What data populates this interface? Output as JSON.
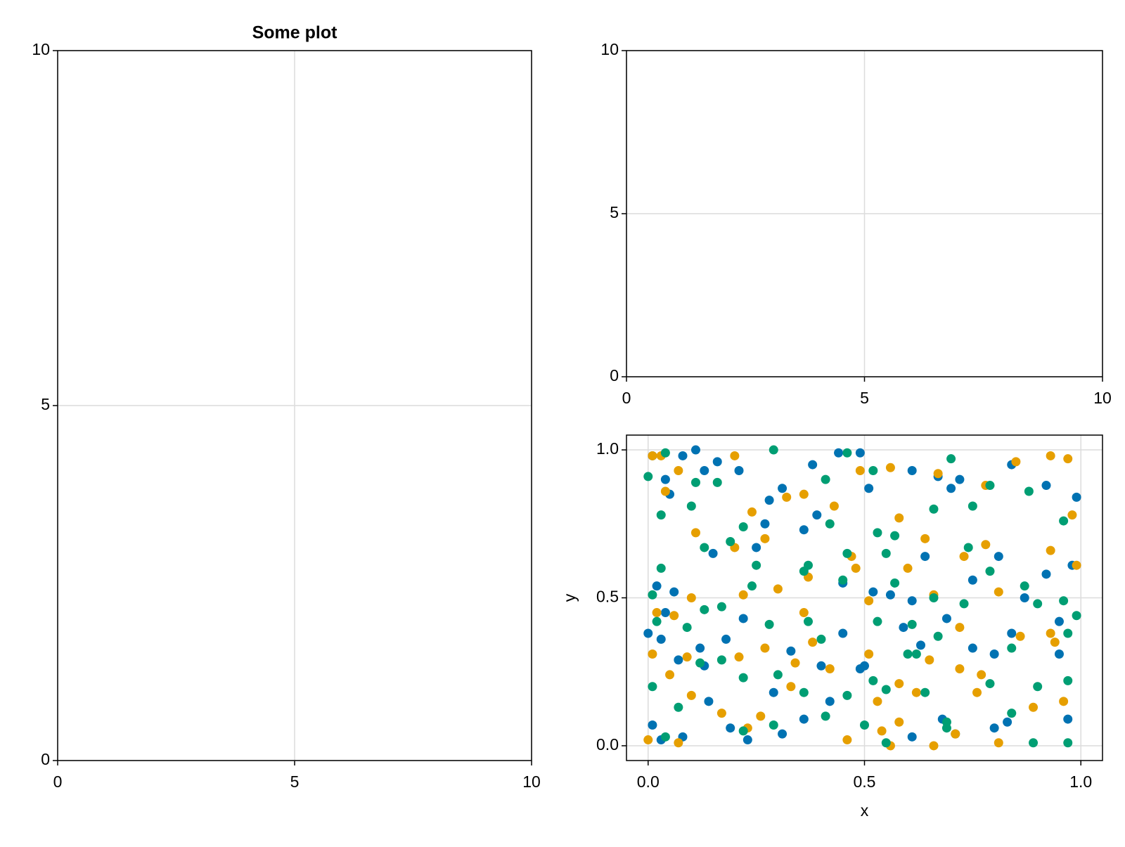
{
  "chart_data": [
    {
      "type": "scatter",
      "title": "Some plot",
      "xlim": [
        0,
        10
      ],
      "ylim": [
        0,
        10
      ],
      "xticks": [
        0,
        5,
        10
      ],
      "yticks": [
        0,
        5,
        10
      ],
      "grid": true
    },
    {
      "type": "scatter",
      "xlim": [
        0,
        10
      ],
      "ylim": [
        0,
        10
      ],
      "xticks": [
        0,
        5,
        10
      ],
      "yticks": [
        0,
        5,
        10
      ],
      "grid": true
    },
    {
      "type": "scatter",
      "x_label": "x",
      "y_label": "y",
      "xlim": [
        -0.05,
        1.05
      ],
      "ylim": [
        -0.05,
        1.05
      ],
      "xticks": [
        {
          "value": 0,
          "label": "0.0"
        },
        0.5,
        {
          "value": 1,
          "label": "1.0"
        }
      ],
      "yticks": [
        {
          "value": 0,
          "label": "0.0"
        },
        0.5,
        {
          "value": 1,
          "label": "1.0"
        }
      ],
      "grid": true,
      "series": [
        {
          "color": "#0072b2",
          "x": [
            0.01,
            0.04,
            0.05,
            0.08,
            0.11,
            0.13,
            0.16,
            0.21,
            0.28,
            0.31,
            0.38,
            0.44,
            0.49,
            0.51,
            0.61,
            0.67,
            0.72,
            0.84,
            0.92,
            0.99,
            0.02,
            0.04,
            0.06,
            0.12,
            0.15,
            0.18,
            0.25,
            0.27,
            0.36,
            0.39,
            0.45,
            0.52,
            0.56,
            0.61,
            0.64,
            0.7,
            0.75,
            0.81,
            0.87,
            0.92,
            0.95,
            0.98,
            0.0,
            0.03,
            0.07,
            0.13,
            0.22,
            0.29,
            0.33,
            0.4,
            0.45,
            0.49,
            0.59,
            0.63,
            0.69,
            0.75,
            0.8,
            0.84,
            0.95,
            0.01,
            0.03,
            0.08,
            0.14,
            0.19,
            0.23,
            0.31,
            0.36,
            0.42,
            0.5,
            0.61,
            0.68,
            0.71,
            0.8,
            0.83,
            0.97
          ],
          "values": [
            0.98,
            0.9,
            0.85,
            0.98,
            1.0,
            0.93,
            0.96,
            0.93,
            0.83,
            0.87,
            0.95,
            0.99,
            0.99,
            0.87,
            0.93,
            0.91,
            0.9,
            0.95,
            0.88,
            0.84,
            0.54,
            0.45,
            0.52,
            0.33,
            0.65,
            0.36,
            0.67,
            0.75,
            0.73,
            0.78,
            0.55,
            0.52,
            0.51,
            0.49,
            0.64,
            0.87,
            0.56,
            0.64,
            0.5,
            0.58,
            0.42,
            0.61,
            0.38,
            0.36,
            0.29,
            0.27,
            0.43,
            0.18,
            0.32,
            0.27,
            0.38,
            0.26,
            0.4,
            0.34,
            0.43,
            0.33,
            0.31,
            0.38,
            0.31,
            0.07,
            0.02,
            0.03,
            0.15,
            0.06,
            0.02,
            0.04,
            0.09,
            0.15,
            0.27,
            0.03,
            0.09,
            0.04,
            0.06,
            0.08,
            0.09
          ]
        },
        {
          "color": "#e69f00",
          "x": [
            0.01,
            0.03,
            0.04,
            0.07,
            0.2,
            0.32,
            0.49,
            0.56,
            0.67,
            0.85,
            0.93,
            0.97,
            0.98,
            0.24,
            0.27,
            0.36,
            0.43,
            0.58,
            0.64,
            0.78,
            0.11,
            0.2,
            0.37,
            0.48,
            0.6,
            0.73,
            0.78,
            0.93,
            0.99,
            0.02,
            0.06,
            0.1,
            0.22,
            0.3,
            0.36,
            0.47,
            0.51,
            0.66,
            0.72,
            0.81,
            0.93,
            0.01,
            0.05,
            0.09,
            0.21,
            0.27,
            0.34,
            0.38,
            0.51,
            0.58,
            0.65,
            0.72,
            0.77,
            0.86,
            0.94,
            0.1,
            0.17,
            0.23,
            0.33,
            0.42,
            0.46,
            0.53,
            0.56,
            0.62,
            0.66,
            0.71,
            0.76,
            0.81,
            0.89,
            0.96,
            0.0,
            0.07,
            0.26,
            0.54,
            0.58
          ],
          "values": [
            0.98,
            0.98,
            0.86,
            0.93,
            0.98,
            0.84,
            0.93,
            0.94,
            0.92,
            0.96,
            0.98,
            0.97,
            0.78,
            0.79,
            0.7,
            0.85,
            0.81,
            0.77,
            0.7,
            0.88,
            0.72,
            0.67,
            0.57,
            0.6,
            0.6,
            0.64,
            0.68,
            0.66,
            0.61,
            0.45,
            0.44,
            0.5,
            0.51,
            0.53,
            0.45,
            0.64,
            0.49,
            0.51,
            0.4,
            0.52,
            0.38,
            0.31,
            0.24,
            0.3,
            0.3,
            0.33,
            0.28,
            0.35,
            0.31,
            0.21,
            0.29,
            0.26,
            0.24,
            0.37,
            0.35,
            0.17,
            0.11,
            0.06,
            0.2,
            0.26,
            0.02,
            0.15,
            0.0,
            0.18,
            0.0,
            0.04,
            0.18,
            0.01,
            0.13,
            0.15,
            0.02,
            0.01,
            0.1,
            0.05,
            0.08
          ]
        },
        {
          "color": "#009e73",
          "x": [
            0.0,
            0.04,
            0.11,
            0.16,
            0.29,
            0.41,
            0.46,
            0.52,
            0.7,
            0.79,
            0.03,
            0.1,
            0.22,
            0.36,
            0.42,
            0.53,
            0.57,
            0.66,
            0.75,
            0.88,
            0.96,
            0.03,
            0.13,
            0.19,
            0.25,
            0.37,
            0.46,
            0.55,
            0.61,
            0.66,
            0.74,
            0.79,
            0.87,
            0.96,
            0.01,
            0.02,
            0.09,
            0.13,
            0.17,
            0.24,
            0.28,
            0.37,
            0.4,
            0.45,
            0.53,
            0.57,
            0.62,
            0.67,
            0.73,
            0.84,
            0.9,
            0.97,
            0.99,
            0.01,
            0.07,
            0.12,
            0.17,
            0.22,
            0.3,
            0.36,
            0.41,
            0.46,
            0.52,
            0.55,
            0.6,
            0.64,
            0.69,
            0.79,
            0.84,
            0.9,
            0.97,
            0.04,
            0.22,
            0.29,
            0.5,
            0.55,
            0.69,
            0.89,
            0.97
          ],
          "values": [
            0.91,
            0.99,
            0.89,
            0.89,
            1.0,
            0.9,
            0.99,
            0.93,
            0.97,
            0.88,
            0.78,
            0.81,
            0.74,
            0.59,
            0.75,
            0.72,
            0.71,
            0.8,
            0.81,
            0.86,
            0.76,
            0.6,
            0.67,
            0.69,
            0.61,
            0.61,
            0.65,
            0.65,
            0.41,
            0.5,
            0.67,
            0.59,
            0.54,
            0.49,
            0.51,
            0.42,
            0.4,
            0.46,
            0.47,
            0.54,
            0.41,
            0.42,
            0.36,
            0.56,
            0.42,
            0.55,
            0.31,
            0.37,
            0.48,
            0.33,
            0.48,
            0.38,
            0.44,
            0.2,
            0.13,
            0.28,
            0.29,
            0.23,
            0.24,
            0.18,
            0.1,
            0.17,
            0.22,
            0.19,
            0.31,
            0.18,
            0.08,
            0.21,
            0.11,
            0.2,
            0.22,
            0.03,
            0.05,
            0.07,
            0.07,
            0.01,
            0.06,
            0.01,
            0.01
          ]
        }
      ]
    }
  ]
}
